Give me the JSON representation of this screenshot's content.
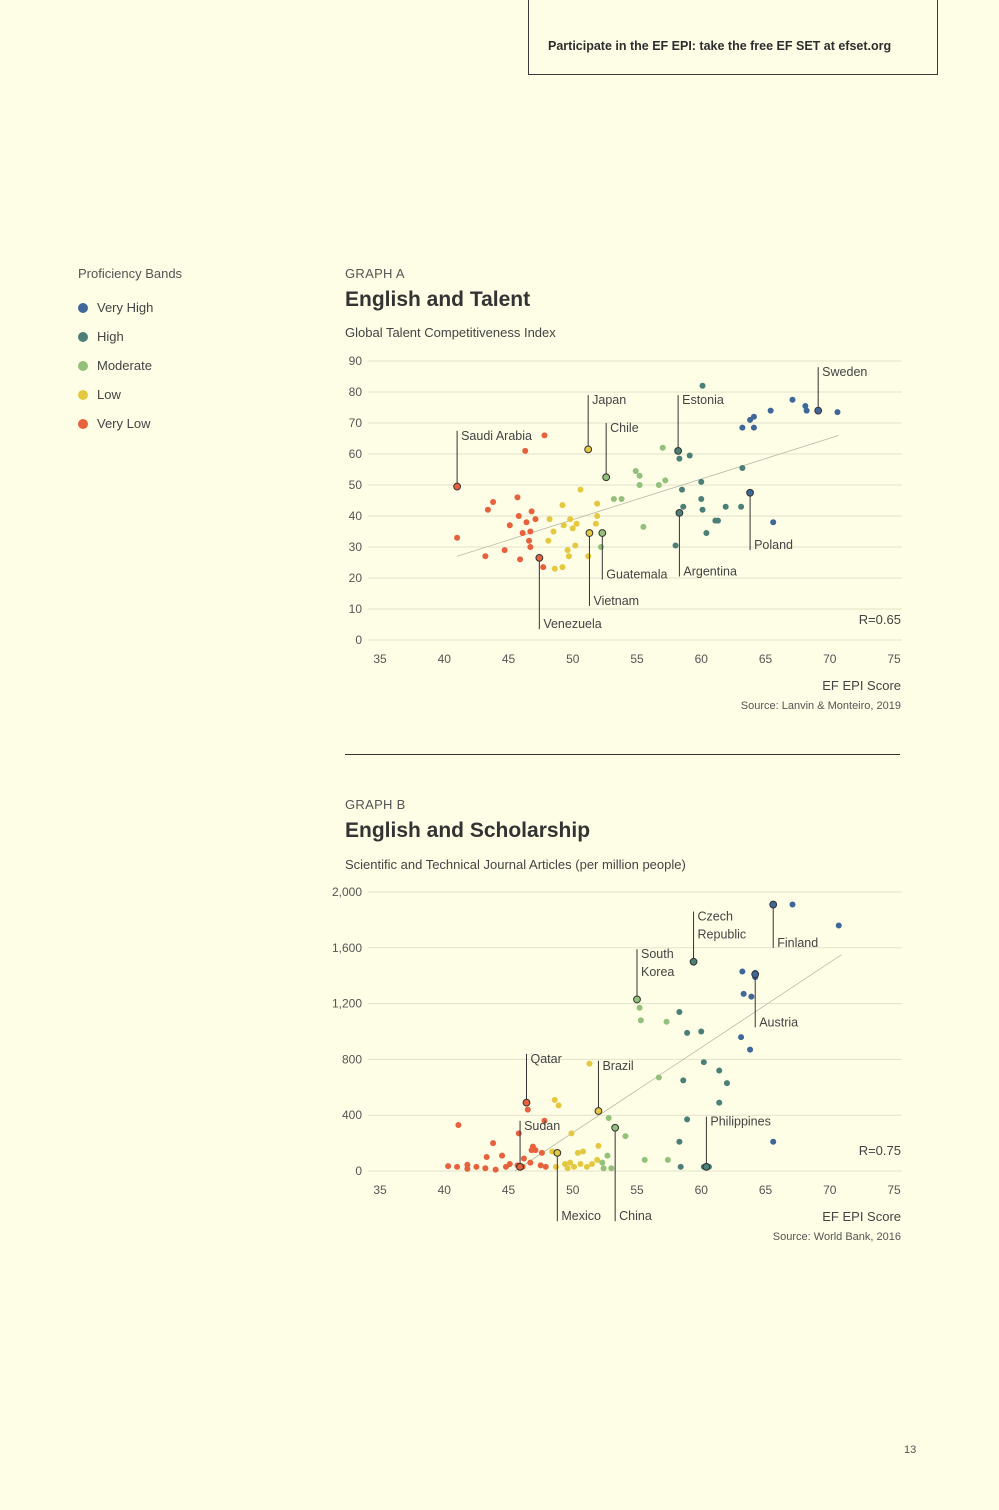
{
  "cta": {
    "text": "Participate in the EF EPI: take the free EF SET at efset.org"
  },
  "legend": {
    "title": "Proficiency Bands",
    "items": [
      {
        "label": "Very High",
        "color": "#3f679a"
      },
      {
        "label": "High",
        "color": "#4b7f77"
      },
      {
        "label": "Moderate",
        "color": "#93c07a"
      },
      {
        "label": "Low",
        "color": "#e3c840"
      },
      {
        "label": "Very Low",
        "color": "#e8613d"
      }
    ]
  },
  "graph_a": {
    "label": "GRAPH A",
    "title": "English and Talent",
    "subtitle": "Global Talent Competitiveness Index"
  },
  "graph_b": {
    "label": "GRAPH B",
    "title": "English and Scholarship",
    "subtitle": "Scientific and Technical Journal Articles (per million people)"
  },
  "page_number": "13",
  "chart_data": [
    {
      "type": "scatter",
      "id": "a",
      "title": "English and Talent",
      "ylabel": "Global Talent Competitiveness Index",
      "xlabel": "EF EPI Score",
      "source": "Source: Lanvin & Monteiro, 2019",
      "r_label": "R=0.65",
      "xlim": [
        35,
        75
      ],
      "ylim": [
        0,
        90
      ],
      "xticks": [
        35,
        40,
        45,
        50,
        55,
        60,
        65,
        70,
        75
      ],
      "yticks": [
        0,
        10,
        20,
        30,
        40,
        50,
        60,
        70,
        80,
        90
      ],
      "ytick_labels": [
        "0",
        "10",
        "20",
        "30",
        "40",
        "50",
        "60",
        "70",
        "80",
        "90"
      ],
      "trend": [
        [
          41,
          27
        ],
        [
          70.7,
          66
        ]
      ],
      "points": [
        [
          41,
          33,
          "vl"
        ],
        [
          43.2,
          27,
          "vl"
        ],
        [
          43.4,
          42,
          "vl"
        ],
        [
          43.8,
          44.5,
          "vl"
        ],
        [
          44.7,
          29,
          "vl"
        ],
        [
          45.1,
          37,
          "vl"
        ],
        [
          45.7,
          46,
          "vl"
        ],
        [
          45.8,
          40,
          "vl"
        ],
        [
          45.9,
          26,
          "vl"
        ],
        [
          46.1,
          34.5,
          "vl"
        ],
        [
          46.4,
          38,
          "vl"
        ],
        [
          46.6,
          32,
          "vl"
        ],
        [
          46.7,
          35,
          "vl"
        ],
        [
          46.7,
          30,
          "vl"
        ],
        [
          46.8,
          41.5,
          "vl"
        ],
        [
          47.1,
          39,
          "vl"
        ],
        [
          47.7,
          23.5,
          "vl"
        ],
        [
          46.3,
          61,
          "vl"
        ],
        [
          47.8,
          66,
          "vl"
        ],
        [
          48.1,
          32,
          "lo"
        ],
        [
          48.2,
          39,
          "lo"
        ],
        [
          48.5,
          35,
          "lo"
        ],
        [
          48.6,
          23,
          "lo"
        ],
        [
          49.2,
          43.5,
          "lo"
        ],
        [
          49.2,
          23.5,
          "lo"
        ],
        [
          49.3,
          37,
          "lo"
        ],
        [
          49.6,
          29,
          "lo"
        ],
        [
          49.7,
          27,
          "lo"
        ],
        [
          49.8,
          39,
          "lo"
        ],
        [
          50.0,
          36,
          "lo"
        ],
        [
          50.2,
          30.5,
          "lo"
        ],
        [
          50.3,
          37.5,
          "lo"
        ],
        [
          50.6,
          48.5,
          "lo"
        ],
        [
          51.2,
          27,
          "lo"
        ],
        [
          51.8,
          37.5,
          "lo"
        ],
        [
          51.9,
          44,
          "lo"
        ],
        [
          51.9,
          40,
          "lo"
        ],
        [
          52.2,
          30,
          "mo"
        ],
        [
          53.2,
          45.5,
          "mo"
        ],
        [
          53.8,
          45.5,
          "mo"
        ],
        [
          54.9,
          54.5,
          "mo"
        ],
        [
          55.2,
          53,
          "mo"
        ],
        [
          55.2,
          50,
          "mo"
        ],
        [
          55.5,
          36.5,
          "mo"
        ],
        [
          56.7,
          50,
          "mo"
        ],
        [
          57.0,
          62,
          "mo"
        ],
        [
          57.2,
          51.5,
          "mo"
        ],
        [
          58.3,
          58.5,
          "hi"
        ],
        [
          58.5,
          48.5,
          "hi"
        ],
        [
          58.6,
          43,
          "hi"
        ],
        [
          59.1,
          59.5,
          "hi"
        ],
        [
          60.0,
          45.5,
          "hi"
        ],
        [
          60.0,
          51,
          "hi"
        ],
        [
          60.1,
          82,
          "hi"
        ],
        [
          60.1,
          42,
          "hi"
        ],
        [
          60.4,
          34.5,
          "hi"
        ],
        [
          61.1,
          38.5,
          "hi"
        ],
        [
          61.3,
          38.5,
          "hi"
        ],
        [
          61.9,
          43,
          "hi"
        ],
        [
          58.0,
          30.5,
          "hi"
        ],
        [
          63.1,
          43,
          "hi"
        ],
        [
          63.2,
          55.5,
          "hi"
        ],
        [
          63.2,
          68.5,
          "vh"
        ],
        [
          63.8,
          71,
          "vh"
        ],
        [
          64.1,
          68.5,
          "vh"
        ],
        [
          64.1,
          72,
          "vh"
        ],
        [
          65.4,
          74,
          "vh"
        ],
        [
          65.6,
          38,
          "vh"
        ],
        [
          67.1,
          77.5,
          "vh"
        ],
        [
          68.1,
          75.5,
          "vh"
        ],
        [
          68.2,
          74,
          "vh"
        ],
        [
          70.6,
          73.5,
          "vh"
        ]
      ],
      "highlights": [
        {
          "label": "Saudi Arabia",
          "x": 41,
          "y": 49.5,
          "cls": "vl",
          "dir": "up",
          "end": 67.5
        },
        {
          "label": "Japan",
          "x": 51.2,
          "y": 61.5,
          "cls": "lo",
          "dir": "up",
          "end": 79
        },
        {
          "label": "Chile",
          "x": 52.6,
          "y": 52.5,
          "cls": "mo",
          "dir": "up",
          "end": 70
        },
        {
          "label": "Estonia",
          "x": 58.2,
          "y": 61,
          "cls": "hi",
          "dir": "up",
          "end": 79
        },
        {
          "label": "Sweden",
          "x": 69.1,
          "y": 74,
          "cls": "vh",
          "dir": "up",
          "end": 88
        },
        {
          "label": "Venezuela",
          "x": 47.4,
          "y": 26.5,
          "cls": "vl",
          "dir": "down",
          "end": 3.5
        },
        {
          "label": "Vietnam",
          "x": 51.3,
          "y": 34.5,
          "cls": "lo",
          "dir": "down",
          "end": 11
        },
        {
          "label": "Guatemala",
          "x": 52.3,
          "y": 34.5,
          "cls": "mo",
          "dir": "down",
          "end": 19.5
        },
        {
          "label": "Argentina",
          "x": 58.3,
          "y": 41,
          "cls": "hi",
          "dir": "down",
          "end": 20.5
        },
        {
          "label": "Poland",
          "x": 63.8,
          "y": 47.5,
          "cls": "vh",
          "dir": "down",
          "end": 29
        }
      ]
    },
    {
      "type": "scatter",
      "id": "b",
      "title": "English and Scholarship",
      "ylabel": "Scientific and Technical Journal Articles (per million people)",
      "xlabel": "EF EPI Score",
      "source": "Source: World Bank, 2016",
      "r_label": "R=0.75",
      "xlim": [
        35,
        75
      ],
      "ylim": [
        0,
        2000
      ],
      "xticks": [
        35,
        40,
        45,
        50,
        55,
        60,
        65,
        70,
        75
      ],
      "yticks": [
        0,
        400,
        800,
        1200,
        1600,
        2000
      ],
      "ytick_labels": [
        "0",
        "400",
        "800",
        "1,200",
        "1,600",
        "2,000"
      ],
      "trend": [
        [
          45.5,
          0
        ],
        [
          70.9,
          1550
        ]
      ],
      "points": [
        [
          40.3,
          35,
          "vl"
        ],
        [
          41.0,
          30,
          "vl"
        ],
        [
          41.1,
          330,
          "vl"
        ],
        [
          41.8,
          15,
          "vl"
        ],
        [
          41.8,
          45,
          "vl"
        ],
        [
          42.5,
          30,
          "vl"
        ],
        [
          43.2,
          20,
          "vl"
        ],
        [
          43.3,
          100,
          "vl"
        ],
        [
          43.8,
          200,
          "vl"
        ],
        [
          44.0,
          10,
          "vl"
        ],
        [
          44.5,
          110,
          "vl"
        ],
        [
          44.8,
          30,
          "vl"
        ],
        [
          45.1,
          50,
          "vl"
        ],
        [
          45.7,
          40,
          "vl"
        ],
        [
          45.8,
          270,
          "vl"
        ],
        [
          46.1,
          30,
          "vl"
        ],
        [
          46.2,
          90,
          "vl"
        ],
        [
          46.5,
          440,
          "vl"
        ],
        [
          46.7,
          60,
          "vl"
        ],
        [
          46.8,
          150,
          "vl"
        ],
        [
          46.9,
          175,
          "vl"
        ],
        [
          47.1,
          150,
          "vl"
        ],
        [
          47.5,
          40,
          "vl"
        ],
        [
          47.6,
          130,
          "vl"
        ],
        [
          47.8,
          360,
          "vl"
        ],
        [
          47.9,
          30,
          "vl"
        ],
        [
          48.4,
          140,
          "lo"
        ],
        [
          48.6,
          510,
          "lo"
        ],
        [
          48.7,
          30,
          "lo"
        ],
        [
          48.9,
          470,
          "lo"
        ],
        [
          49.4,
          50,
          "lo"
        ],
        [
          49.6,
          20,
          "lo"
        ],
        [
          49.8,
          60,
          "lo"
        ],
        [
          49.9,
          270,
          "lo"
        ],
        [
          50.1,
          30,
          "lo"
        ],
        [
          50.4,
          130,
          "lo"
        ],
        [
          50.6,
          50,
          "lo"
        ],
        [
          50.8,
          140,
          "lo"
        ],
        [
          51.1,
          30,
          "lo"
        ],
        [
          51.3,
          770,
          "lo"
        ],
        [
          51.5,
          50,
          "lo"
        ],
        [
          51.9,
          80,
          "lo"
        ],
        [
          52.0,
          180,
          "lo"
        ],
        [
          52.3,
          60,
          "mo"
        ],
        [
          52.4,
          20,
          "mo"
        ],
        [
          52.7,
          110,
          "mo"
        ],
        [
          52.8,
          380,
          "mo"
        ],
        [
          53.0,
          20,
          "mo"
        ],
        [
          54.1,
          250,
          "mo"
        ],
        [
          55.2,
          1170,
          "mo"
        ],
        [
          55.3,
          1080,
          "mo"
        ],
        [
          55.6,
          80,
          "mo"
        ],
        [
          56.7,
          670,
          "mo"
        ],
        [
          57.3,
          1070,
          "mo"
        ],
        [
          57.4,
          80,
          "mo"
        ],
        [
          58.3,
          1140,
          "hi"
        ],
        [
          58.3,
          210,
          "hi"
        ],
        [
          58.4,
          30,
          "hi"
        ],
        [
          58.6,
          650,
          "hi"
        ],
        [
          58.9,
          990,
          "hi"
        ],
        [
          58.9,
          370,
          "hi"
        ],
        [
          60.0,
          1000,
          "hi"
        ],
        [
          60.2,
          780,
          "hi"
        ],
        [
          60.2,
          30,
          "hi"
        ],
        [
          60.6,
          30,
          "hi"
        ],
        [
          61.4,
          720,
          "hi"
        ],
        [
          61.4,
          490,
          "hi"
        ],
        [
          62.0,
          630,
          "hi"
        ],
        [
          63.1,
          960,
          "vh"
        ],
        [
          63.2,
          1430,
          "vh"
        ],
        [
          63.3,
          1270,
          "vh"
        ],
        [
          63.8,
          870,
          "vh"
        ],
        [
          63.9,
          1250,
          "vh"
        ],
        [
          64.2,
          1390,
          "vh"
        ],
        [
          64.2,
          1420,
          "vh"
        ],
        [
          65.6,
          210,
          "vh"
        ],
        [
          67.1,
          1910,
          "vh"
        ],
        [
          70.7,
          1760,
          "vh"
        ]
      ],
      "highlights": [
        {
          "label": "Qatar",
          "x": 46.4,
          "y": 490,
          "cls": "vl",
          "dir": "up",
          "end": 840
        },
        {
          "label": "Sudan",
          "x": 45.9,
          "y": 30,
          "cls": "vl",
          "dir": "up",
          "end": 360
        },
        {
          "label": "Brazil",
          "x": 52.0,
          "y": 430,
          "cls": "lo",
          "dir": "up",
          "end": 790
        },
        {
          "label": "South Korea",
          "x": 55.0,
          "y": 1230,
          "cls": "mo",
          "dir": "up",
          "end": 1590
        },
        {
          "label": "Czech Republic",
          "x": 59.4,
          "y": 1500,
          "cls": "hi",
          "dir": "up",
          "end": 1860
        },
        {
          "label": "Finland",
          "x": 65.6,
          "y": 1910,
          "cls": "vh",
          "dir": "down",
          "end": 1600
        },
        {
          "label": "Austria",
          "x": 64.2,
          "y": 1410,
          "cls": "vh",
          "dir": "down",
          "end": 1030
        },
        {
          "label": "Philippines",
          "x": 60.4,
          "y": 30,
          "cls": "hi",
          "dir": "up",
          "end": 390
        },
        {
          "label": "Mexico",
          "x": 48.8,
          "y": 130,
          "cls": "lo",
          "dir": "down",
          "end": -360
        },
        {
          "label": "China",
          "x": 53.3,
          "y": 310,
          "cls": "mo",
          "dir": "down",
          "end": -360
        }
      ]
    }
  ]
}
